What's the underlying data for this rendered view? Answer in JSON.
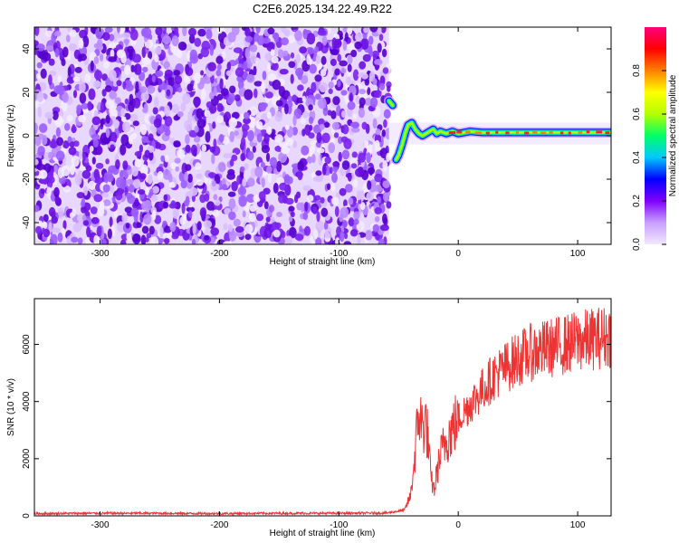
{
  "title": "C2E6.2025.134.22.49.R22",
  "chart_data": [
    {
      "type": "heatmap",
      "xlabel": "Height of straight line (km)",
      "ylabel": "Frequency (Hz)",
      "xlim": [
        -355,
        128
      ],
      "ylim": [
        -50,
        50
      ],
      "xticks": [
        -300,
        -200,
        -100,
        0,
        100
      ],
      "yticks": [
        -40,
        -20,
        0,
        20,
        40
      ],
      "noise_region_x": [
        -355,
        -58
      ],
      "trace": {
        "x": [
          -58,
          -55,
          -52,
          -50,
          -47,
          -44,
          -42,
          -39,
          -36,
          -33,
          -30,
          -27,
          -24,
          -21,
          -18,
          -15,
          -10,
          -5,
          0,
          10,
          20,
          40,
          60,
          80,
          100,
          128
        ],
        "y": [
          16,
          14,
          -11,
          -9,
          -4,
          2,
          5,
          6,
          3,
          1,
          0,
          1,
          2,
          3,
          1,
          2,
          1,
          2,
          1,
          2,
          1.5,
          1.5,
          1.5,
          1.5,
          1.5,
          1.5
        ]
      },
      "colorbar": {
        "label": "Normalized spectral amplitude",
        "range": [
          0,
          1
        ],
        "ticks": [
          "0.0",
          "0.2",
          "0.4",
          "0.6",
          "0.8"
        ],
        "tick_values": [
          0.0,
          0.2,
          0.4,
          0.6,
          0.8
        ],
        "colors": [
          "#f2e8ff",
          "#c8a0ff",
          "#8000ff",
          "#0000ff",
          "#00c8ff",
          "#00ff66",
          "#b4ff00",
          "#ffff00",
          "#ff8000",
          "#ff0000",
          "#ff0080"
        ]
      }
    },
    {
      "type": "line",
      "xlabel": "Height of straight line (km)",
      "ylabel": "SNR (10 * v/v)",
      "xlim": [
        -355,
        128
      ],
      "ylim": [
        0,
        7600
      ],
      "xticks": [
        -300,
        -200,
        -100,
        0,
        100
      ],
      "yticks": [
        0,
        2000,
        4000,
        6000
      ],
      "color": "#ee3333",
      "series": [
        {
          "x": [
            -355,
            -300,
            -250,
            -200,
            -150,
            -100,
            -60,
            -45,
            -40,
            -37,
            -35,
            -33,
            -30,
            -27,
            -25,
            -23,
            -20,
            -18,
            -15,
            -10,
            0,
            10,
            20,
            30,
            40,
            50,
            60,
            80,
            100,
            128
          ],
          "values": [
            80,
            90,
            90,
            80,
            90,
            90,
            100,
            200,
            700,
            1800,
            2800,
            3600,
            3100,
            3300,
            2500,
            1300,
            900,
            1500,
            2100,
            2700,
            3400,
            3900,
            4400,
            4900,
            5200,
            5500,
            5700,
            5900,
            6100,
            6300
          ]
        }
      ]
    }
  ]
}
